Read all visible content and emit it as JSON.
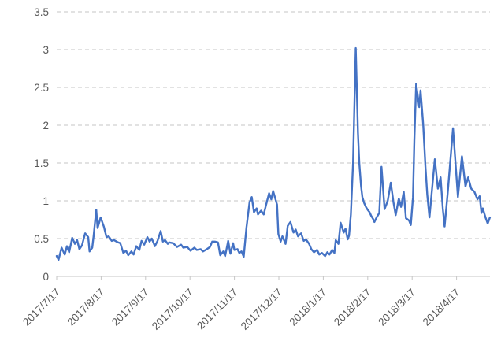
{
  "chart": {
    "title": "",
    "accent_color": "#4472C4",
    "gridline_color": "#D9D9D9",
    "axis_color": "#C6C6C6",
    "label_color": "#595959",
    "background_color": "#FFFFFF"
  },
  "chart_data": {
    "type": "line",
    "title": "",
    "xlabel": "",
    "ylabel": "",
    "legend": "none",
    "grid": "horizontal-dashed",
    "x_unit": "months since 2017/7/17 (one tick = one month, daily points)",
    "x_tick_labels": [
      "2017/7/17",
      "2017/8/17",
      "2017/9/17",
      "2017/10/17",
      "2017/11/17",
      "2017/12/17",
      "2018/1/17",
      "2018/2/17",
      "2018/3/17",
      "2018/4/17"
    ],
    "y_tick_labels": [
      "0",
      "0.5",
      "1",
      "1.5",
      "2",
      "2.5",
      "3",
      "3.5"
    ],
    "y_tick_values": [
      0,
      0.5,
      1,
      1.5,
      2,
      2.5,
      3,
      3.5
    ],
    "xlim": [
      0,
      9.75
    ],
    "ylim": [
      0,
      3.5
    ],
    "series": [
      {
        "name": "value",
        "color": "#4472C4",
        "points": [
          [
            0.0,
            0.27
          ],
          [
            0.04,
            0.22
          ],
          [
            0.11,
            0.38
          ],
          [
            0.18,
            0.29
          ],
          [
            0.23,
            0.4
          ],
          [
            0.28,
            0.32
          ],
          [
            0.35,
            0.51
          ],
          [
            0.41,
            0.43
          ],
          [
            0.46,
            0.48
          ],
          [
            0.51,
            0.36
          ],
          [
            0.57,
            0.41
          ],
          [
            0.64,
            0.57
          ],
          [
            0.71,
            0.52
          ],
          [
            0.74,
            0.33
          ],
          [
            0.8,
            0.38
          ],
          [
            0.83,
            0.53
          ],
          [
            0.89,
            0.88
          ],
          [
            0.92,
            0.64
          ],
          [
            0.99,
            0.78
          ],
          [
            1.06,
            0.66
          ],
          [
            1.12,
            0.52
          ],
          [
            1.17,
            0.53
          ],
          [
            1.24,
            0.47
          ],
          [
            1.29,
            0.48
          ],
          [
            1.38,
            0.45
          ],
          [
            1.43,
            0.44
          ],
          [
            1.5,
            0.31
          ],
          [
            1.56,
            0.34
          ],
          [
            1.61,
            0.28
          ],
          [
            1.68,
            0.33
          ],
          [
            1.73,
            0.29
          ],
          [
            1.79,
            0.4
          ],
          [
            1.86,
            0.35
          ],
          [
            1.91,
            0.47
          ],
          [
            1.97,
            0.42
          ],
          [
            2.04,
            0.52
          ],
          [
            2.09,
            0.46
          ],
          [
            2.14,
            0.5
          ],
          [
            2.21,
            0.4
          ],
          [
            2.27,
            0.47
          ],
          [
            2.34,
            0.6
          ],
          [
            2.39,
            0.46
          ],
          [
            2.44,
            0.48
          ],
          [
            2.5,
            0.43
          ],
          [
            2.53,
            0.45
          ],
          [
            2.62,
            0.44
          ],
          [
            2.71,
            0.39
          ],
          [
            2.8,
            0.42
          ],
          [
            2.85,
            0.38
          ],
          [
            2.94,
            0.39
          ],
          [
            3.01,
            0.34
          ],
          [
            3.1,
            0.38
          ],
          [
            3.15,
            0.35
          ],
          [
            3.24,
            0.36
          ],
          [
            3.29,
            0.33
          ],
          [
            3.38,
            0.36
          ],
          [
            3.45,
            0.39
          ],
          [
            3.5,
            0.46
          ],
          [
            3.56,
            0.46
          ],
          [
            3.63,
            0.45
          ],
          [
            3.68,
            0.28
          ],
          [
            3.75,
            0.33
          ],
          [
            3.79,
            0.27
          ],
          [
            3.86,
            0.47
          ],
          [
            3.91,
            0.3
          ],
          [
            3.97,
            0.44
          ],
          [
            4.0,
            0.35
          ],
          [
            4.07,
            0.36
          ],
          [
            4.11,
            0.31
          ],
          [
            4.16,
            0.33
          ],
          [
            4.21,
            0.26
          ],
          [
            4.27,
            0.64
          ],
          [
            4.34,
            0.98
          ],
          [
            4.39,
            1.05
          ],
          [
            4.44,
            0.85
          ],
          [
            4.5,
            0.9
          ],
          [
            4.53,
            0.82
          ],
          [
            4.6,
            0.87
          ],
          [
            4.66,
            0.82
          ],
          [
            4.71,
            0.94
          ],
          [
            4.78,
            1.1
          ],
          [
            4.83,
            1.02
          ],
          [
            4.87,
            1.13
          ],
          [
            4.96,
            0.95
          ],
          [
            4.99,
            0.56
          ],
          [
            5.04,
            0.46
          ],
          [
            5.08,
            0.53
          ],
          [
            5.15,
            0.43
          ],
          [
            5.2,
            0.67
          ],
          [
            5.26,
            0.72
          ],
          [
            5.33,
            0.58
          ],
          [
            5.38,
            0.62
          ],
          [
            5.43,
            0.53
          ],
          [
            5.5,
            0.57
          ],
          [
            5.56,
            0.47
          ],
          [
            5.61,
            0.49
          ],
          [
            5.68,
            0.43
          ],
          [
            5.73,
            0.36
          ],
          [
            5.79,
            0.32
          ],
          [
            5.86,
            0.35
          ],
          [
            5.91,
            0.29
          ],
          [
            5.97,
            0.31
          ],
          [
            6.04,
            0.27
          ],
          [
            6.09,
            0.32
          ],
          [
            6.14,
            0.29
          ],
          [
            6.2,
            0.35
          ],
          [
            6.25,
            0.31
          ],
          [
            6.28,
            0.48
          ],
          [
            6.34,
            0.43
          ],
          [
            6.39,
            0.71
          ],
          [
            6.46,
            0.58
          ],
          [
            6.5,
            0.63
          ],
          [
            6.55,
            0.49
          ],
          [
            6.58,
            0.54
          ],
          [
            6.62,
            0.82
          ],
          [
            6.67,
            1.5
          ],
          [
            6.73,
            3.02
          ],
          [
            6.78,
            1.9
          ],
          [
            6.81,
            1.5
          ],
          [
            6.85,
            1.2
          ],
          [
            6.88,
            1.05
          ],
          [
            6.92,
            0.97
          ],
          [
            6.96,
            0.92
          ],
          [
            7.0,
            0.88
          ],
          [
            7.04,
            0.85
          ],
          [
            7.08,
            0.8
          ],
          [
            7.12,
            0.76
          ],
          [
            7.15,
            0.72
          ],
          [
            7.2,
            0.78
          ],
          [
            7.26,
            0.84
          ],
          [
            7.31,
            1.45
          ],
          [
            7.38,
            0.89
          ],
          [
            7.45,
            1.0
          ],
          [
            7.52,
            1.24
          ],
          [
            7.58,
            0.98
          ],
          [
            7.63,
            0.81
          ],
          [
            7.7,
            1.03
          ],
          [
            7.75,
            0.92
          ],
          [
            7.81,
            1.12
          ],
          [
            7.86,
            0.77
          ],
          [
            7.93,
            0.74
          ],
          [
            7.97,
            0.68
          ],
          [
            8.02,
            1.05
          ],
          [
            8.05,
            1.8
          ],
          [
            8.09,
            2.55
          ],
          [
            8.16,
            2.24
          ],
          [
            8.19,
            2.46
          ],
          [
            8.25,
            2.0
          ],
          [
            8.3,
            1.45
          ],
          [
            8.34,
            1.08
          ],
          [
            8.39,
            0.78
          ],
          [
            8.44,
            1.1
          ],
          [
            8.51,
            1.55
          ],
          [
            8.58,
            1.16
          ],
          [
            8.64,
            1.31
          ],
          [
            8.69,
            0.9
          ],
          [
            8.73,
            0.66
          ],
          [
            8.8,
            1.1
          ],
          [
            8.92,
            1.96
          ],
          [
            9.03,
            1.05
          ],
          [
            9.12,
            1.59
          ],
          [
            9.2,
            1.19
          ],
          [
            9.26,
            1.31
          ],
          [
            9.33,
            1.16
          ],
          [
            9.4,
            1.12
          ],
          [
            9.47,
            1.02
          ],
          [
            9.52,
            1.06
          ],
          [
            9.56,
            0.84
          ],
          [
            9.59,
            0.9
          ],
          [
            9.65,
            0.78
          ],
          [
            9.7,
            0.7
          ],
          [
            9.75,
            0.78
          ]
        ]
      }
    ]
  }
}
